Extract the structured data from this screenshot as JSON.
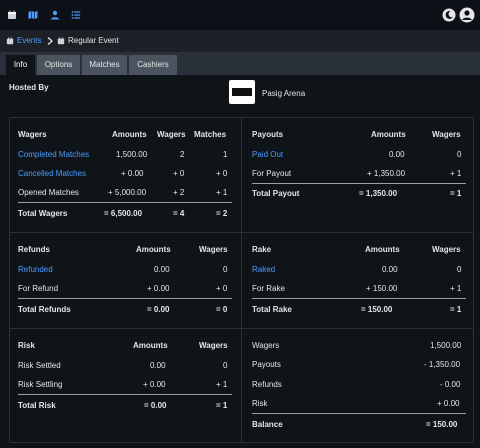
{
  "nav": {
    "icons": [
      "calendar-icon",
      "map-icon",
      "user-icon",
      "list-icon",
      "moon-icon",
      "avatar-icon"
    ]
  },
  "breadcrumb": {
    "events": "Events",
    "current": "Regular Event"
  },
  "tabs": [
    "Info",
    "Options",
    "Matches",
    "Cashiers"
  ],
  "hosted_by": {
    "label": "Hosted By",
    "name": "Pasig Arena"
  },
  "wagers": {
    "headers": [
      "Wagers",
      "Amounts",
      "Wagers",
      "Matches"
    ],
    "rows": [
      [
        "Completed Matches",
        "1,500.00",
        "2",
        "1"
      ],
      [
        "Cancelled Matches",
        "+ 0.00",
        "+ 0",
        "+ 0"
      ],
      [
        "Opened Matches",
        "+ 5,000.00",
        "+ 2",
        "+ 1"
      ]
    ],
    "total": [
      "Total Wagers",
      "= 6,500.00",
      "= 4",
      "= 2"
    ]
  },
  "payouts": {
    "headers": [
      "Payouts",
      "Amounts",
      "Wagers"
    ],
    "rows": [
      [
        "Paid Out",
        "0.00",
        "0"
      ],
      [
        "For Payout",
        "+ 1,350.00",
        "+ 1"
      ]
    ],
    "total": [
      "Total Payout",
      "= 1,350.00",
      "= 1"
    ]
  },
  "refunds": {
    "headers": [
      "Refunds",
      "Amounts",
      "Wagers"
    ],
    "rows": [
      [
        "Refunded",
        "0.00",
        "0"
      ],
      [
        "For Refund",
        "+ 0.00",
        "+ 0"
      ]
    ],
    "total": [
      "Total Refunds",
      "= 0.00",
      "= 0"
    ]
  },
  "rake": {
    "headers": [
      "Rake",
      "Amounts",
      "Wagers"
    ],
    "rows": [
      [
        "Raked",
        "0.00",
        "0"
      ],
      [
        "For Rake",
        "+ 150.00",
        "+ 1"
      ]
    ],
    "total": [
      "Total Rake",
      "= 150.00",
      "= 1"
    ]
  },
  "risk": {
    "headers": [
      "Risk",
      "Amounts",
      "Wagers"
    ],
    "rows": [
      [
        "Risk Settled",
        "0.00",
        "0"
      ],
      [
        "Risk Settling",
        "+ 0.00",
        "+ 1"
      ]
    ],
    "total": [
      "Total Risk",
      "= 0.00",
      "= 1"
    ]
  },
  "balance": {
    "rows": [
      [
        "Wagers",
        "1,500.00"
      ],
      [
        "Payouts",
        "- 1,350.00"
      ],
      [
        "Refunds",
        "- 0.00"
      ],
      [
        "Risk",
        "+ 0.00"
      ]
    ],
    "total": [
      "Balance",
      "= 150.00"
    ]
  },
  "colors": {
    "accent": "#4c9bff",
    "background": "#0f1419"
  }
}
